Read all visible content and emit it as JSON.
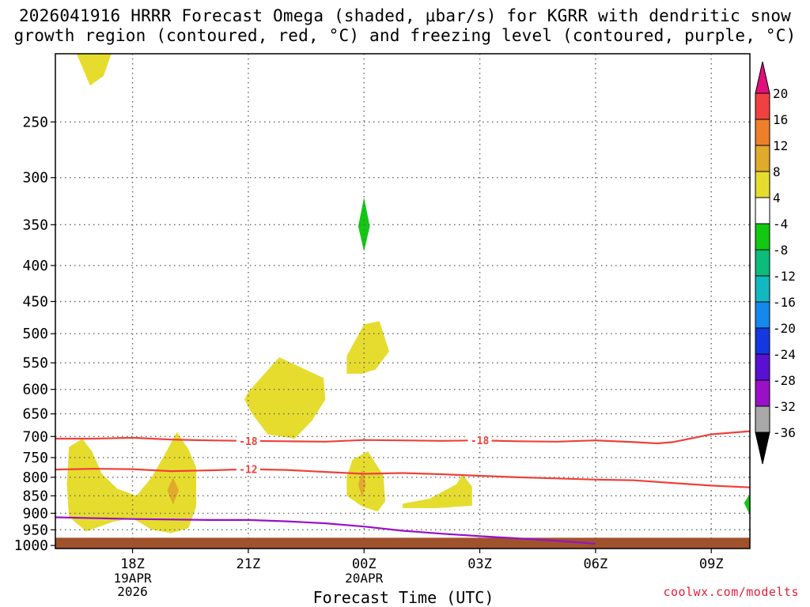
{
  "title_line1": "2026041916 HRRR Forecast Omega (shaded, μbar/s) for KGRR with dendritic snow",
  "title_line2": "growth region (contoured, red, °C) and freezing level (contoured, purple, °C)",
  "credit": "coolwx.com/modelts",
  "colors": {
    "dgz_contour": "#f0403a",
    "freezing_level": "#9a10c8",
    "ground": "#a0522d",
    "grid": "#666666"
  },
  "chart_data": {
    "type": "heatmap",
    "xlabel": "Forecast Time (UTC)",
    "ylabel": "",
    "x_ticks": [
      {
        "label": "18Z",
        "sub": [
          "19APR",
          "2026"
        ]
      },
      {
        "label": "21Z",
        "sub": []
      },
      {
        "label": "00Z",
        "sub": [
          "20APR"
        ]
      },
      {
        "label": "03Z",
        "sub": []
      },
      {
        "label": "06Z",
        "sub": []
      },
      {
        "label": "09Z",
        "sub": []
      }
    ],
    "x_tick_hours": [
      2,
      5,
      8,
      11,
      14,
      17
    ],
    "xlim_hours": [
      0,
      18
    ],
    "y_ticks": [
      250,
      300,
      350,
      400,
      450,
      500,
      550,
      600,
      650,
      700,
      750,
      800,
      850,
      900,
      950,
      1000
    ],
    "ylim_hpa": [
      200,
      1010
    ],
    "y_scale": "log",
    "grid": true,
    "colorbar": {
      "labels": [
        "20",
        "16",
        "12",
        "8",
        "4",
        "-4",
        "-8",
        "-12",
        "-16",
        "-20",
        "-24",
        "-28",
        "-32",
        "-36"
      ],
      "bins": [
        {
          "range": [
            16,
            20
          ],
          "color": "#f04040"
        },
        {
          "range": [
            12,
            16
          ],
          "color": "#ee7f2a"
        },
        {
          "range": [
            8,
            12
          ],
          "color": "#e0aa2c"
        },
        {
          "range": [
            4,
            8
          ],
          "color": "#e6dc2e"
        },
        {
          "range": [
            -4,
            4
          ],
          "color": "#ffffff"
        },
        {
          "range": [
            -8,
            -4
          ],
          "color": "#12c812"
        },
        {
          "range": [
            -12,
            -8
          ],
          "color": "#0cbc7a"
        },
        {
          "range": [
            -16,
            -12
          ],
          "color": "#12b8c0"
        },
        {
          "range": [
            -20,
            -16
          ],
          "color": "#1488ec"
        },
        {
          "range": [
            -24,
            -20
          ],
          "color": "#1438e0"
        },
        {
          "range": [
            -28,
            -24
          ],
          "color": "#5a10d0"
        },
        {
          "range": [
            -32,
            -28
          ],
          "color": "#9a10c8"
        },
        {
          "range": [
            -36,
            -32
          ],
          "color": "#a8a8a8"
        }
      ],
      "over_color": "#e0107a",
      "under_color": "#000000"
    },
    "omega_regions": [
      {
        "level": "4-8",
        "color": "#e6dc2e",
        "points": [
          [
            0.55,
            200
          ],
          [
            1.45,
            200
          ],
          [
            1.25,
            215
          ],
          [
            0.9,
            222
          ]
        ]
      },
      {
        "level": "4-8",
        "color": "#e6dc2e",
        "points": [
          [
            0.35,
            725
          ],
          [
            0.7,
            705
          ],
          [
            0.95,
            735
          ],
          [
            1.2,
            790
          ],
          [
            1.6,
            830
          ],
          [
            2.1,
            850
          ],
          [
            2.5,
            800
          ],
          [
            2.85,
            740
          ],
          [
            3.15,
            690
          ],
          [
            3.45,
            730
          ],
          [
            3.65,
            775
          ],
          [
            3.65,
            880
          ],
          [
            3.45,
            945
          ],
          [
            3.0,
            960
          ],
          [
            2.5,
            950
          ],
          [
            2.0,
            915
          ],
          [
            1.5,
            925
          ],
          [
            0.8,
            955
          ],
          [
            0.35,
            910
          ],
          [
            0.3,
            820
          ]
        ]
      },
      {
        "level": "8-12",
        "color": "#e0aa2c",
        "points": [
          [
            3.05,
            800
          ],
          [
            3.2,
            835
          ],
          [
            3.05,
            875
          ],
          [
            2.9,
            835
          ]
        ]
      },
      {
        "level": "4-8",
        "color": "#e6dc2e",
        "points": [
          [
            5.0,
            605
          ],
          [
            5.8,
            540
          ],
          [
            6.95,
            578
          ],
          [
            7.0,
            620
          ],
          [
            6.65,
            665
          ],
          [
            6.2,
            705
          ],
          [
            5.5,
            695
          ],
          [
            5.1,
            650
          ],
          [
            4.9,
            620
          ]
        ]
      },
      {
        "level": "4-8",
        "color": "#e6dc2e",
        "points": [
          [
            7.7,
            755
          ],
          [
            8.1,
            735
          ],
          [
            8.5,
            795
          ],
          [
            8.55,
            865
          ],
          [
            8.35,
            895
          ],
          [
            7.95,
            880
          ],
          [
            7.55,
            850
          ],
          [
            7.55,
            800
          ]
        ]
      },
      {
        "level": "8-12",
        "color": "#e0aa2c",
        "points": [
          [
            7.95,
            780
          ],
          [
            8.05,
            820
          ],
          [
            7.95,
            855
          ],
          [
            7.85,
            820
          ]
        ]
      },
      {
        "level": "4-8",
        "color": "#e6dc2e",
        "points": [
          [
            7.55,
            538
          ],
          [
            8.0,
            485
          ],
          [
            8.4,
            480
          ],
          [
            8.65,
            530
          ],
          [
            8.3,
            562
          ],
          [
            7.95,
            570
          ],
          [
            7.55,
            570
          ]
        ]
      },
      {
        "level": "4-8",
        "color": "#e6dc2e",
        "points": [
          [
            9.0,
            872
          ],
          [
            9.7,
            858
          ],
          [
            10.4,
            818
          ],
          [
            10.55,
            792
          ],
          [
            10.8,
            825
          ],
          [
            10.8,
            878
          ],
          [
            9.9,
            885
          ],
          [
            9.0,
            885
          ]
        ]
      },
      {
        "level": "-4--8",
        "color": "#12c812",
        "points": [
          [
            8.0,
            320
          ],
          [
            8.15,
            352
          ],
          [
            8.0,
            382
          ],
          [
            7.85,
            352
          ]
        ]
      },
      {
        "level": "-4--8",
        "color": "#12c812",
        "points": [
          [
            18.0,
            845
          ],
          [
            17.85,
            870
          ],
          [
            18.0,
            905
          ]
        ]
      }
    ],
    "dgz_contours": [
      {
        "label": "-18",
        "label_x": [
          5.0,
          11.0
        ],
        "x": [
          0,
          1,
          2,
          3,
          4,
          5,
          6,
          7,
          8,
          9,
          10,
          11,
          12,
          13,
          14,
          15,
          15.6,
          16,
          17,
          18
        ],
        "y": [
          705,
          705,
          703,
          707,
          709,
          710,
          711,
          712,
          708,
          709,
          710,
          709,
          711,
          712,
          709,
          713,
          716,
          713,
          695,
          688
        ]
      },
      {
        "label": "-12",
        "label_x": [
          5.0
        ],
        "x": [
          0,
          1,
          2,
          3,
          4,
          5,
          6,
          7,
          8,
          9,
          10,
          11,
          12,
          13,
          14,
          15,
          16,
          17,
          18
        ],
        "y": [
          780,
          778,
          779,
          784,
          782,
          779,
          781,
          786,
          791,
          789,
          792,
          796,
          800,
          803,
          806,
          808,
          815,
          822,
          827
        ]
      }
    ],
    "freezing_level": {
      "x": [
        0,
        2,
        4,
        5,
        6,
        7,
        8,
        9,
        10,
        11,
        12,
        13,
        14
      ],
      "y": [
        912,
        917,
        920,
        920,
        924,
        930,
        940,
        953,
        962,
        970,
        977,
        985,
        994
      ]
    },
    "ground_pressure_hpa": 975
  }
}
